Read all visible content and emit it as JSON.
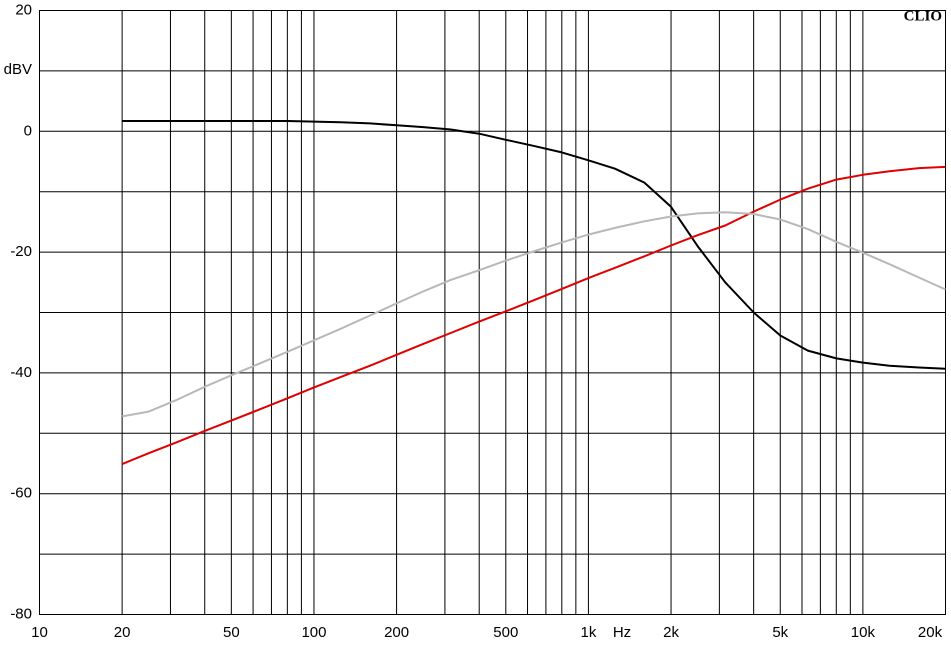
{
  "chart_data": {
    "type": "line",
    "watermark": "CLIO",
    "x_label": "Hz",
    "y_label": "dBV",
    "x_scale": "log",
    "grid": true,
    "xlim": [
      10,
      20000
    ],
    "xticks": [
      10,
      20,
      50,
      100,
      200,
      500,
      {
        "value": 1000,
        "label": "1k"
      },
      {
        "value": 2000,
        "label": "2k"
      },
      {
        "value": 5000,
        "label": "5k"
      },
      {
        "value": 10000,
        "label": "10k"
      },
      {
        "value": 20000,
        "label": "20k"
      }
    ],
    "x_minor_ticks": [
      30,
      40,
      60,
      70,
      80,
      90,
      300,
      400,
      600,
      700,
      800,
      900,
      3000,
      4000,
      6000,
      7000,
      8000,
      9000
    ],
    "ylim": [
      -80,
      20
    ],
    "yticks": [
      -80,
      -60,
      -40,
      -20,
      0,
      20
    ],
    "y_minor_ticks": [
      -70,
      -50,
      -30,
      -10,
      10
    ],
    "x": [
      20,
      25,
      31.5,
      40,
      50,
      63,
      80,
      100,
      125,
      160,
      200,
      250,
      315,
      400,
      500,
      630,
      800,
      1000,
      1250,
      1600,
      2000,
      2500,
      3150,
      4000,
      5000,
      6300,
      8000,
      10000,
      12500,
      16000,
      20000
    ],
    "series": [
      {
        "color": "#000000",
        "values": [
          1.7,
          1.7,
          1.7,
          1.7,
          1.7,
          1.7,
          1.7,
          1.6,
          1.5,
          1.3,
          1.0,
          0.7,
          0.3,
          -0.4,
          -1.4,
          -2.4,
          -3.5,
          -4.8,
          -6.2,
          -8.5,
          -12.5,
          -19,
          -25,
          -30,
          -33.8,
          -36.3,
          -37.6,
          -38.3,
          -38.8,
          -39.1,
          -39.3
        ]
      },
      {
        "color": "#e00000",
        "values": [
          -55.1,
          -53.3,
          -51.5,
          -49.6,
          -47.9,
          -46.1,
          -44.2,
          -42.4,
          -40.7,
          -38.8,
          -37.0,
          -35.2,
          -33.4,
          -31.5,
          -29.8,
          -28.0,
          -26.1,
          -24.3,
          -22.6,
          -20.7,
          -18.9,
          -17.2,
          -15.6,
          -13.3,
          -11.3,
          -9.5,
          -8.0,
          -7.2,
          -6.6,
          -6.1,
          -5.9
        ]
      },
      {
        "color": "#b8b8b8",
        "values": [
          -47.2,
          -46.4,
          -44.5,
          -42.3,
          -40.4,
          -38.5,
          -36.5,
          -34.6,
          -32.7,
          -30.5,
          -28.5,
          -26.5,
          -24.6,
          -23.0,
          -21.4,
          -19.9,
          -18.4,
          -17.1,
          -16.0,
          -14.9,
          -14.1,
          -13.6,
          -13.4,
          -13.7,
          -14.6,
          -16.2,
          -18.3,
          -20.1,
          -22.0,
          -24.2,
          -26.2
        ]
      }
    ]
  }
}
